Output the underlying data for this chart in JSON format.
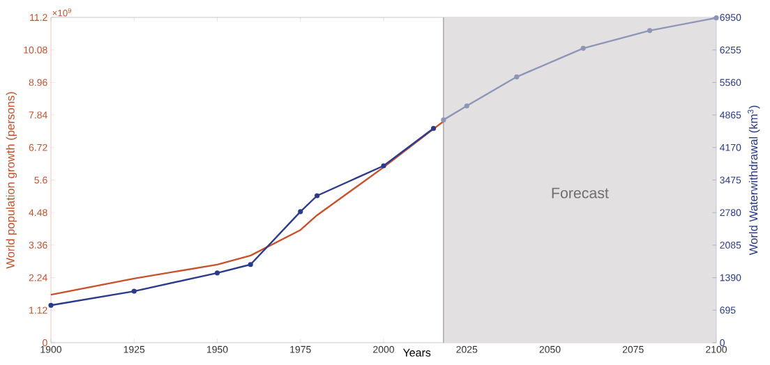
{
  "chart_data": {
    "type": "line",
    "xlabel": "Years",
    "ylabel": "World population growth (persons)",
    "y2label": "World Waterwithdrawal (km$^{3}$)",
    "annotations": [
      "×10$^{9}$"
    ],
    "xlim": [
      1900,
      2100
    ],
    "xticks": [
      1900,
      1925,
      1950,
      1975,
      2000,
      2025,
      2050,
      2075,
      2100
    ],
    "ylim": [
      0,
      11.2
    ],
    "yticks": [
      0,
      1.12,
      2.24,
      3.36,
      4.48,
      5.6,
      6.72,
      7.84,
      8.96,
      10.08,
      11.2
    ],
    "y2lim": [
      0,
      6950
    ],
    "y2ticks": [
      0,
      695,
      1390,
      2085,
      2780,
      3475,
      4170,
      4865,
      5560,
      6255,
      6950
    ],
    "ref_lines": [
      {
        "axis": "x",
        "value": 2018,
        "color": "#b4aaaa"
      }
    ],
    "bands": [
      {
        "axis": "x",
        "from": 2018,
        "to": 2100,
        "label": "Forecast",
        "color": "#e2e0e0"
      }
    ],
    "series": [
      {
        "color": "#c8502a",
        "marker": "none",
        "x": [
          1900,
          1925,
          1950,
          1960,
          1975,
          1980,
          2000,
          2015,
          2018
        ],
        "values": [
          1.65,
          2.21,
          2.69,
          3.0,
          3.88,
          4.39,
          6.04,
          7.36,
          7.62
        ]
      },
      {
        "color": "#2b3a8a",
        "marker": "circle",
        "axis": "y2",
        "x": [
          1900,
          1925,
          1950,
          1960,
          1975,
          1980,
          2000,
          2015
        ],
        "values": [
          800,
          1100,
          1490,
          1670,
          2800,
          3140,
          3780,
          4580
        ]
      },
      {
        "color": "#8e95b7",
        "marker": "circle",
        "axis": "y2",
        "x": [
          2018,
          2025,
          2040,
          2060,
          2080,
          2100
        ],
        "values": [
          4760,
          5060,
          5680,
          6290,
          6670,
          6940
        ]
      }
    ]
  }
}
